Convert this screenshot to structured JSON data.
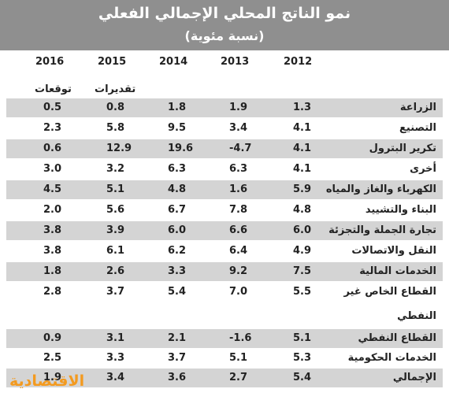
{
  "title": "نمو الناتج المحلي الإجمالي الفعلي",
  "subtitle": "(نسبة مئوية)",
  "years": [
    "2016",
    "2015",
    "2014",
    "2013",
    "2012"
  ],
  "notes": {
    "forecast": "توقعات",
    "estimates": "تقديرات"
  },
  "rows": [
    {
      "label": "الزراعة",
      "values": [
        "1.3",
        "1.9",
        "1.8",
        "0.8",
        "0.5"
      ]
    },
    {
      "label": "التصنيع",
      "values": [
        "4.1",
        "3.4",
        "9.5",
        "5.8",
        "2.3"
      ]
    },
    {
      "label": "تكرير البترول",
      "values": [
        "4.1",
        "-4.7",
        "19.6",
        "12.9",
        "0.6"
      ]
    },
    {
      "label": "أخرى",
      "values": [
        "4.1",
        "6.3",
        "6.3",
        "3.2",
        "3.0"
      ]
    },
    {
      "label": "الكهرباء والغاز والمياه",
      "values": [
        "5.9",
        "1.6",
        "4.8",
        "5.1",
        "4.5"
      ]
    },
    {
      "label": "البناء والتشييد",
      "values": [
        "4.8",
        "7.8",
        "6.7",
        "5.6",
        "2.0"
      ]
    },
    {
      "label": "تجارة الجملة والتجزئة",
      "values": [
        "6.0",
        "6.6",
        "6.0",
        "3.9",
        "3.8"
      ]
    },
    {
      "label": "النقل والاتصالات",
      "values": [
        "4.9",
        "6.4",
        "6.2",
        "6.1",
        "3.8"
      ]
    },
    {
      "label": "الخدمات المالية",
      "values": [
        "7.5",
        "9.2",
        "3.3",
        "2.6",
        "1.8"
      ]
    },
    {
      "label": "القطاع الخاص غير",
      "values": [
        "5.5",
        "7.0",
        "5.4",
        "3.7",
        "2.8"
      ]
    },
    {
      "label": "القطاع النفطي",
      "values": [
        "5.1",
        "-1.6",
        "2.1",
        "3.1",
        "0.9"
      ]
    },
    {
      "label": "الخدمات الحكومية",
      "values": [
        "5.3",
        "5.1",
        "3.7",
        "3.3",
        "2.5"
      ]
    },
    {
      "label": "الإجمالي",
      "values": [
        "5.4",
        "2.7",
        "3.6",
        "3.4",
        "1.9"
      ]
    }
  ],
  "wrap_label": "النفطي",
  "logo_text": "الاقتصادية"
}
